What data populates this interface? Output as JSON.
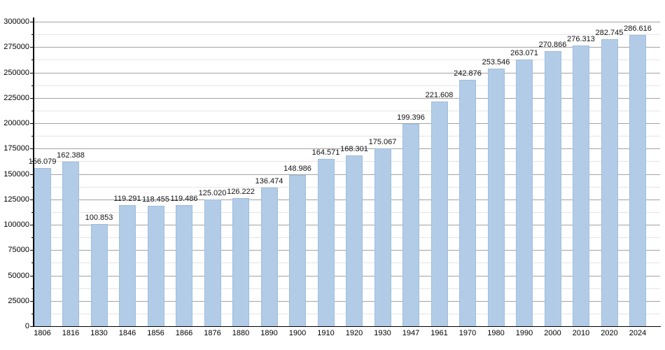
{
  "chart_data": {
    "type": "bar",
    "title": "",
    "xlabel": "",
    "ylabel": "",
    "categories": [
      "1806",
      "1816",
      "1830",
      "1846",
      "1856",
      "1866",
      "1876",
      "1880",
      "1890",
      "1900",
      "1910",
      "1920",
      "1930",
      "1947",
      "1961",
      "1970",
      "1980",
      "1990",
      "2000",
      "2010",
      "2020",
      "2024"
    ],
    "values": [
      156079,
      162388,
      100853,
      119291,
      118455,
      119486,
      125020,
      126222,
      136474,
      148986,
      164571,
      168301,
      175067,
      199396,
      221608,
      242876,
      253546,
      263071,
      270866,
      276313,
      282745,
      286616
    ],
    "value_labels": [
      "156.079",
      "162.388",
      "100.853",
      "119.291",
      "118.455",
      "119.486",
      "125.020",
      "126.222",
      "136.474",
      "148.986",
      "164.571",
      "168.301",
      "175.067",
      "199.396",
      "221.608",
      "242.876",
      "253.546",
      "263.071",
      "270.866",
      "276.313",
      "282.745",
      "286.616"
    ],
    "ylim": [
      0,
      300000
    ],
    "y_major_step": 25000,
    "y_minor_step": 12500,
    "y_tick_labels": [
      "0",
      "25000",
      "50000",
      "75000",
      "100000",
      "125000",
      "150000",
      "175000",
      "200000",
      "225000",
      "250000",
      "275000",
      "300000"
    ],
    "grid": "on",
    "legend_position": "none",
    "colors": {
      "bar_fill": "#b2cce7",
      "bar_border": "#9fbddc",
      "grid_major": "#a3a3a3",
      "grid_minor": "#e4e4e4",
      "axis": "#000000",
      "text": "#000000",
      "background": "#ffffff"
    }
  }
}
